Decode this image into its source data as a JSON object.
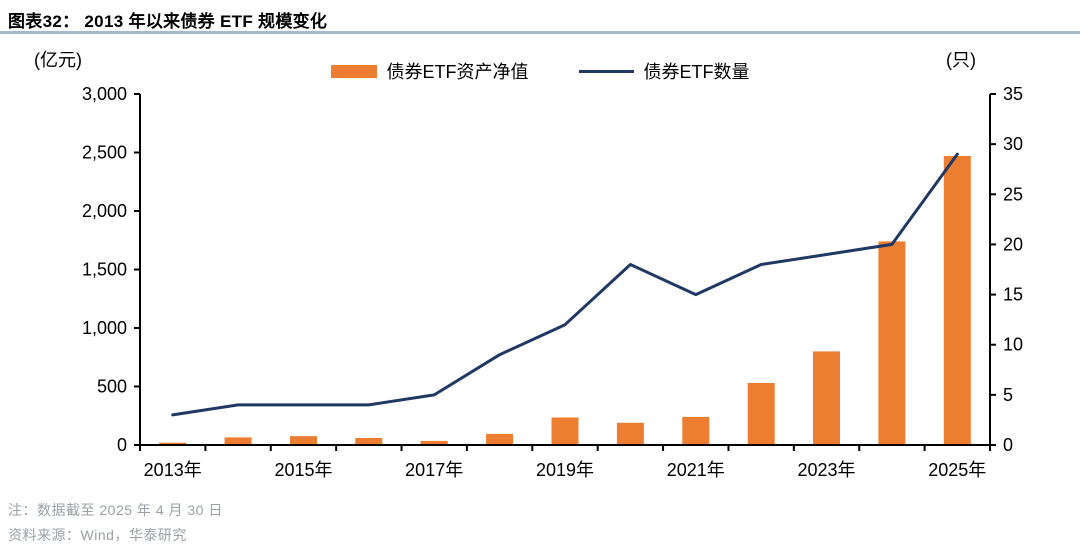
{
  "figure": {
    "title": "图表32： 2013 年以来债券 ETF 规模变化",
    "note": "注：数据截至 2025 年 4 月 30 日",
    "source": "资料来源：Wind，华泰研究"
  },
  "legend": {
    "bar_label": "债券ETF资产净值",
    "line_label": "债券ETF数量"
  },
  "colors": {
    "bar": "#ED7D31",
    "line": "#1F3864",
    "axis": "#000000",
    "title_rule": "#A6B8CA",
    "footnote": "#9AA0A6"
  },
  "chart_data": {
    "type": "bar+line",
    "title": "2013 年以来债券 ETF 规模变化",
    "categories": [
      2013,
      2014,
      2015,
      2016,
      2017,
      2018,
      2019,
      2020,
      2021,
      2022,
      2023,
      2024,
      2025
    ],
    "series": [
      {
        "name": "债券ETF资产净值",
        "type": "bar",
        "axis": "left",
        "color": "#ED7D31",
        "values": [
          20,
          65,
          75,
          60,
          35,
          95,
          235,
          190,
          240,
          530,
          800,
          1740,
          2470
        ]
      },
      {
        "name": "债券ETF数量",
        "type": "line",
        "axis": "right",
        "color": "#1F3864",
        "values": [
          3,
          4,
          4,
          4,
          5,
          9,
          12,
          18,
          15,
          18,
          19,
          20,
          29
        ]
      }
    ],
    "left_axis": {
      "unit": "(亿元)",
      "min": 0,
      "max": 3000,
      "ticks": [
        {
          "value": 0,
          "label": "0"
        },
        {
          "value": 500,
          "label": "500"
        },
        {
          "value": 1000,
          "label": "1,000"
        },
        {
          "value": 1500,
          "label": "1,500"
        },
        {
          "value": 2000,
          "label": "2,000"
        },
        {
          "value": 2500,
          "label": "2,500"
        },
        {
          "value": 3000,
          "label": "3,000"
        }
      ]
    },
    "right_axis": {
      "unit": "(只)",
      "min": 0,
      "max": 35,
      "ticks": [
        {
          "value": 0,
          "label": "0"
        },
        {
          "value": 5,
          "label": "5"
        },
        {
          "value": 10,
          "label": "10"
        },
        {
          "value": 15,
          "label": "15"
        },
        {
          "value": 20,
          "label": "20"
        },
        {
          "value": 25,
          "label": "25"
        },
        {
          "value": 30,
          "label": "30"
        },
        {
          "value": 35,
          "label": "35"
        }
      ]
    },
    "x_axis": {
      "tick_labels": [
        {
          "index": 0,
          "label": "2013年"
        },
        {
          "index": 2,
          "label": "2015年"
        },
        {
          "index": 4,
          "label": "2017年"
        },
        {
          "index": 6,
          "label": "2019年"
        },
        {
          "index": 8,
          "label": "2021年"
        },
        {
          "index": 10,
          "label": "2023年"
        },
        {
          "index": 12,
          "label": "2025年"
        }
      ]
    },
    "grid": false,
    "legend_position": "top"
  }
}
